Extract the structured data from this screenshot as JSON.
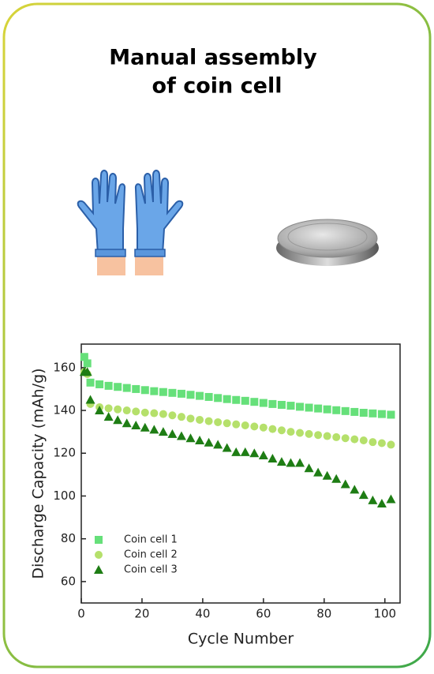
{
  "header": {
    "title_lines": [
      "Manual assembly",
      "of coin cell"
    ]
  },
  "chart_data": {
    "type": "scatter",
    "x_label": "Cycle Number",
    "y_label": "Discharge Capacity (mAh/g)",
    "x": [
      1,
      2,
      3,
      6,
      9,
      12,
      15,
      18,
      21,
      24,
      27,
      30,
      33,
      36,
      39,
      42,
      45,
      48,
      51,
      54,
      57,
      60,
      63,
      66,
      69,
      72,
      75,
      78,
      81,
      84,
      87,
      90,
      93,
      96,
      99,
      102
    ],
    "series": [
      {
        "name": "Coin cell 1",
        "color": "#66e07a",
        "marker": "square",
        "values": [
          165,
          162,
          153,
          152.2,
          151.5,
          151,
          150.5,
          150,
          149.5,
          149,
          148.6,
          148.2,
          147.8,
          147.3,
          146.8,
          146.3,
          145.8,
          145.3,
          144.9,
          144.5,
          144,
          143.5,
          143,
          142.6,
          142.2,
          141.7,
          141.3,
          140.9,
          140.5,
          140.1,
          139.7,
          139.3,
          138.9,
          138.6,
          138.3,
          138
        ]
      },
      {
        "name": "Coin cell 2",
        "color": "#b5e06b",
        "marker": "circle",
        "values": [
          158,
          157,
          143,
          141.5,
          141,
          140.5,
          140,
          139.5,
          139,
          138.7,
          138.3,
          137.7,
          137,
          136.2,
          135.6,
          135,
          134.5,
          134,
          133.5,
          133,
          132.5,
          132,
          131.3,
          130.7,
          130,
          129.5,
          129,
          128.5,
          128,
          127.5,
          127,
          126.5,
          126,
          125.2,
          124.7,
          124
        ]
      },
      {
        "name": "Coin cell 3",
        "color": "#1e7d14",
        "marker": "triangle",
        "values": [
          158,
          158,
          145,
          140,
          137,
          135.5,
          134,
          133,
          132,
          131,
          130,
          129,
          128,
          127,
          126,
          125,
          124,
          122.5,
          120.5,
          120.5,
          120,
          119,
          117.5,
          116,
          115.5,
          115.5,
          113,
          111,
          109.5,
          108,
          105.5,
          103,
          100.5,
          98,
          96.5,
          98.5
        ]
      }
    ],
    "xlim": [
      0,
      105
    ],
    "xticks": [
      0,
      20,
      40,
      60,
      80,
      100
    ],
    "ylim": [
      50,
      171
    ],
    "yticks": [
      60,
      80,
      100,
      120,
      140,
      160
    ],
    "grid": false,
    "legend_position": "lower left"
  }
}
